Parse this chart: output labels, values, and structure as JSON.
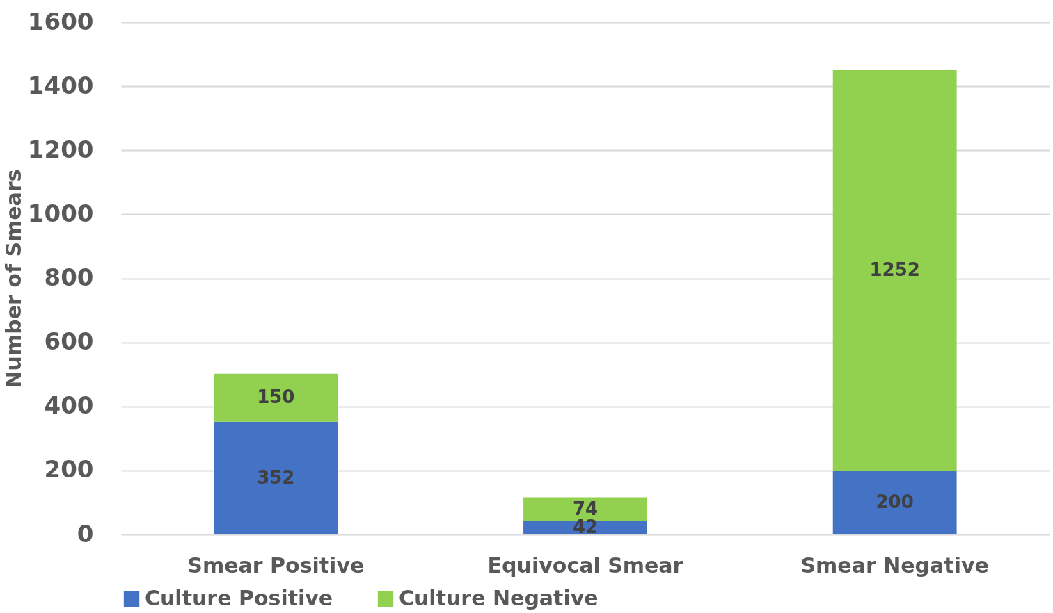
{
  "chart_data": {
    "type": "bar",
    "stacked": true,
    "ylabel": "Number of Smears",
    "categories": [
      "Smear Positive",
      "Equivocal Smear",
      "Smear Negative"
    ],
    "series": [
      {
        "name": "Culture Positive",
        "color": "#4472c4",
        "values": [
          352,
          42,
          200
        ]
      },
      {
        "name": "Culture Negative",
        "color": "#92d050",
        "values": [
          150,
          74,
          1252
        ]
      }
    ],
    "ylim": [
      0,
      1600
    ],
    "yticks": [
      0,
      200,
      400,
      600,
      800,
      1000,
      1200,
      1400,
      1600
    ],
    "grid": "y",
    "legend": "bottom",
    "data_labels": true
  }
}
